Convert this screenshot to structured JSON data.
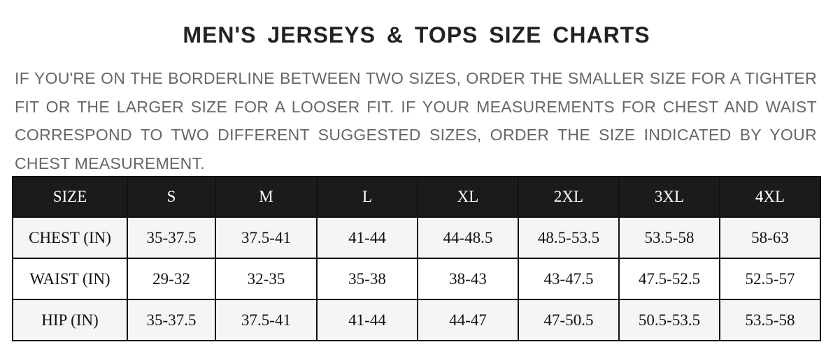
{
  "title": "MEN'S JERSEYS & TOPS SIZE CHARTS",
  "description": "IF YOU'RE ON THE BORDERLINE BETWEEN TWO SIZES, ORDER THE SMALLER SIZE FOR A TIGHTER FIT OR THE LARGER SIZE FOR A LOOSER FIT. IF YOUR MEASUREMENTS FOR CHEST AND WAIST CORRESPOND TO TWO DIFFERENT SUGGESTED SIZES, ORDER THE SIZE INDICATED BY YOUR CHEST MEASUREMENT.",
  "table": {
    "headers": [
      "SIZE",
      "S",
      "M",
      "L",
      "XL",
      "2XL",
      "3XL",
      "4XL"
    ],
    "rows": [
      [
        "CHEST (IN)",
        "35-37.5",
        "37.5-41",
        "41-44",
        "44-48.5",
        "48.5-53.5",
        "53.5-58",
        "58-63"
      ],
      [
        "WAIST (IN)",
        "29-32",
        "32-35",
        "35-38",
        "38-43",
        "43-47.5",
        "47.5-52.5",
        "52.5-57"
      ],
      [
        "HIP (IN)",
        "35-37.5",
        "37.5-41",
        "41-44",
        "44-47",
        "47-50.5",
        "50.5-53.5",
        "53.5-58"
      ]
    ]
  }
}
